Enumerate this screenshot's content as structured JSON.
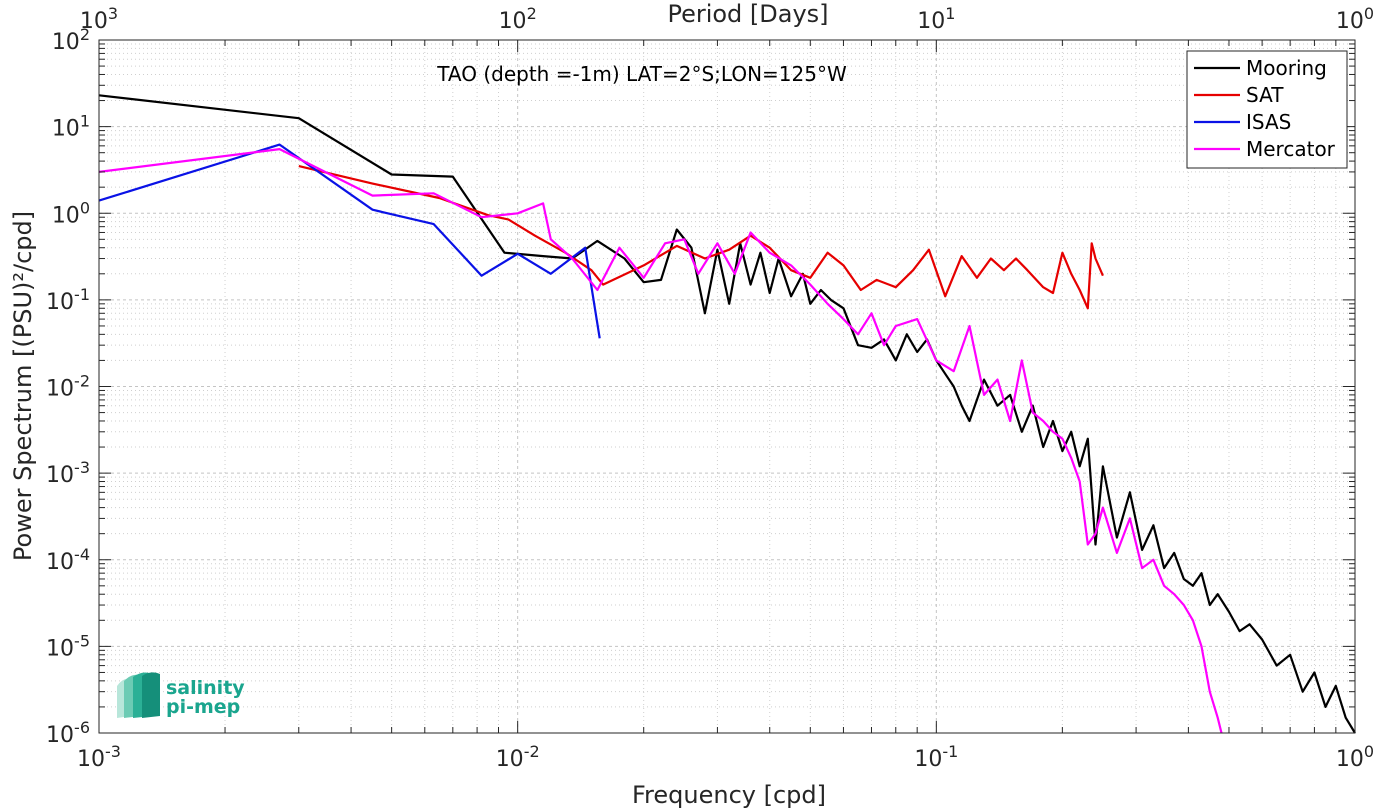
{
  "colors": {
    "mooring": "#000000",
    "sat": "#e60000",
    "isas": "#0a12e6",
    "mercator": "#ff00ff",
    "logo": "#1aa58e"
  },
  "logo": {
    "line1": "salinity",
    "line2": "pi-mep"
  },
  "chart_data": {
    "type": "line",
    "title": "TAO (depth =-1m) LAT=2°S;LON=125°W",
    "xlabel": "Frequency [cpd]",
    "ylabel": "Power Spectrum [(PSU)²/cpd]",
    "top_xlabel": "Period [Days]",
    "xscale": "log",
    "yscale": "log",
    "xlim": [
      0.001,
      1
    ],
    "ylim": [
      1e-06,
      100
    ],
    "top_xlim": [
      1000,
      1
    ],
    "grid": true,
    "legend_position": "top-right",
    "x_ticks": [
      {
        "value": 0.001,
        "base": "10",
        "exp": "-3"
      },
      {
        "value": 0.01,
        "base": "10",
        "exp": "-2"
      },
      {
        "value": 0.1,
        "base": "10",
        "exp": "-1"
      },
      {
        "value": 1,
        "base": "10",
        "exp": "0"
      }
    ],
    "top_x_ticks": [
      {
        "value": 1000,
        "base": "10",
        "exp": "3"
      },
      {
        "value": 100,
        "base": "10",
        "exp": "2"
      },
      {
        "value": 10,
        "base": "10",
        "exp": "1"
      },
      {
        "value": 1,
        "base": "10",
        "exp": "0"
      }
    ],
    "y_ticks": [
      {
        "value": 100,
        "base": "10",
        "exp": "2"
      },
      {
        "value": 10,
        "base": "10",
        "exp": "1"
      },
      {
        "value": 1,
        "base": "10",
        "exp": "0"
      },
      {
        "value": 0.1,
        "base": "10",
        "exp": "-1"
      },
      {
        "value": 0.01,
        "base": "10",
        "exp": "-2"
      },
      {
        "value": 0.001,
        "base": "10",
        "exp": "-3"
      },
      {
        "value": 0.0001,
        "base": "10",
        "exp": "-4"
      },
      {
        "value": 1e-05,
        "base": "10",
        "exp": "-5"
      },
      {
        "value": 1e-06,
        "base": "10",
        "exp": "-6"
      }
    ],
    "series": [
      {
        "name": "Mooring",
        "color": "#000000",
        "x": [
          0.001,
          0.003,
          0.005,
          0.007,
          0.0093,
          0.0115,
          0.0135,
          0.0155,
          0.018,
          0.02,
          0.022,
          0.024,
          0.026,
          0.028,
          0.03,
          0.032,
          0.034,
          0.036,
          0.038,
          0.04,
          0.042,
          0.045,
          0.048,
          0.05,
          0.053,
          0.056,
          0.06,
          0.065,
          0.07,
          0.075,
          0.08,
          0.085,
          0.09,
          0.095,
          0.1,
          0.105,
          0.11,
          0.115,
          0.12,
          0.13,
          0.14,
          0.15,
          0.16,
          0.17,
          0.18,
          0.19,
          0.2,
          0.21,
          0.22,
          0.23,
          0.24,
          0.25,
          0.27,
          0.29,
          0.31,
          0.33,
          0.35,
          0.37,
          0.39,
          0.41,
          0.43,
          0.45,
          0.47,
          0.5,
          0.53,
          0.56,
          0.6,
          0.65,
          0.7,
          0.75,
          0.8,
          0.85,
          0.9,
          0.95,
          1.0
        ],
        "y": [
          23,
          12.5,
          2.8,
          2.65,
          0.35,
          0.32,
          0.3,
          0.48,
          0.3,
          0.16,
          0.17,
          0.65,
          0.4,
          0.07,
          0.38,
          0.09,
          0.45,
          0.15,
          0.35,
          0.12,
          0.3,
          0.11,
          0.2,
          0.09,
          0.13,
          0.1,
          0.08,
          0.03,
          0.028,
          0.035,
          0.02,
          0.04,
          0.025,
          0.035,
          0.02,
          0.014,
          0.01,
          0.006,
          0.004,
          0.012,
          0.006,
          0.008,
          0.003,
          0.006,
          0.002,
          0.004,
          0.0018,
          0.003,
          0.0012,
          0.0025,
          0.00015,
          0.0012,
          0.00018,
          0.0006,
          0.00013,
          0.00025,
          8e-05,
          0.00012,
          6e-05,
          5e-05,
          7e-05,
          3e-05,
          4e-05,
          2.5e-05,
          1.5e-05,
          1.8e-05,
          1.2e-05,
          6e-06,
          8e-06,
          3e-06,
          5e-06,
          2e-06,
          3.5e-06,
          1.5e-06,
          1e-06
        ]
      },
      {
        "name": "SAT",
        "color": "#e60000",
        "x": [
          0.003,
          0.0045,
          0.0065,
          0.0085,
          0.0095,
          0.011,
          0.013,
          0.015,
          0.016,
          0.02,
          0.024,
          0.028,
          0.032,
          0.036,
          0.04,
          0.045,
          0.05,
          0.055,
          0.06,
          0.066,
          0.072,
          0.08,
          0.088,
          0.096,
          0.105,
          0.115,
          0.125,
          0.135,
          0.145,
          0.155,
          0.165,
          0.18,
          0.19,
          0.2,
          0.21,
          0.22,
          0.23,
          0.235,
          0.24,
          0.25
        ],
        "y": [
          3.5,
          2.2,
          1.5,
          0.95,
          0.85,
          0.55,
          0.35,
          0.22,
          0.15,
          0.25,
          0.42,
          0.3,
          0.38,
          0.55,
          0.4,
          0.22,
          0.18,
          0.35,
          0.25,
          0.13,
          0.17,
          0.14,
          0.22,
          0.38,
          0.11,
          0.32,
          0.18,
          0.3,
          0.22,
          0.3,
          0.22,
          0.14,
          0.12,
          0.35,
          0.2,
          0.13,
          0.08,
          0.45,
          0.3,
          0.19
        ]
      },
      {
        "name": "ISAS",
        "color": "#0a12e6",
        "x": [
          0.001,
          0.0027,
          0.0045,
          0.0063,
          0.0082,
          0.01,
          0.012,
          0.0145,
          0.0157
        ],
        "y": [
          1.4,
          6.2,
          1.1,
          0.75,
          0.19,
          0.34,
          0.2,
          0.4,
          0.036
        ]
      },
      {
        "name": "Mercator",
        "color": "#ff00ff",
        "x": [
          0.001,
          0.0027,
          0.0045,
          0.0063,
          0.0082,
          0.01,
          0.0115,
          0.012,
          0.0135,
          0.0155,
          0.0175,
          0.02,
          0.0225,
          0.025,
          0.027,
          0.03,
          0.033,
          0.036,
          0.04,
          0.045,
          0.05,
          0.055,
          0.06,
          0.065,
          0.07,
          0.075,
          0.08,
          0.09,
          0.1,
          0.11,
          0.12,
          0.13,
          0.14,
          0.15,
          0.16,
          0.17,
          0.18,
          0.19,
          0.2,
          0.21,
          0.22,
          0.23,
          0.24,
          0.25,
          0.27,
          0.29,
          0.31,
          0.33,
          0.35,
          0.37,
          0.39,
          0.41,
          0.43,
          0.45,
          0.47,
          0.48
        ],
        "y": [
          3.0,
          5.5,
          1.6,
          1.7,
          0.9,
          1.0,
          1.3,
          0.5,
          0.3,
          0.13,
          0.4,
          0.18,
          0.45,
          0.5,
          0.2,
          0.45,
          0.2,
          0.6,
          0.35,
          0.25,
          0.15,
          0.09,
          0.06,
          0.04,
          0.07,
          0.03,
          0.05,
          0.06,
          0.02,
          0.015,
          0.05,
          0.008,
          0.012,
          0.004,
          0.02,
          0.005,
          0.004,
          0.003,
          0.0025,
          0.0015,
          0.0008,
          0.00015,
          0.0002,
          0.0004,
          0.00012,
          0.0003,
          8e-05,
          0.0001,
          5e-05,
          4e-05,
          3e-05,
          2e-05,
          1e-05,
          3e-06,
          1.5e-06,
          1e-06
        ]
      }
    ]
  }
}
